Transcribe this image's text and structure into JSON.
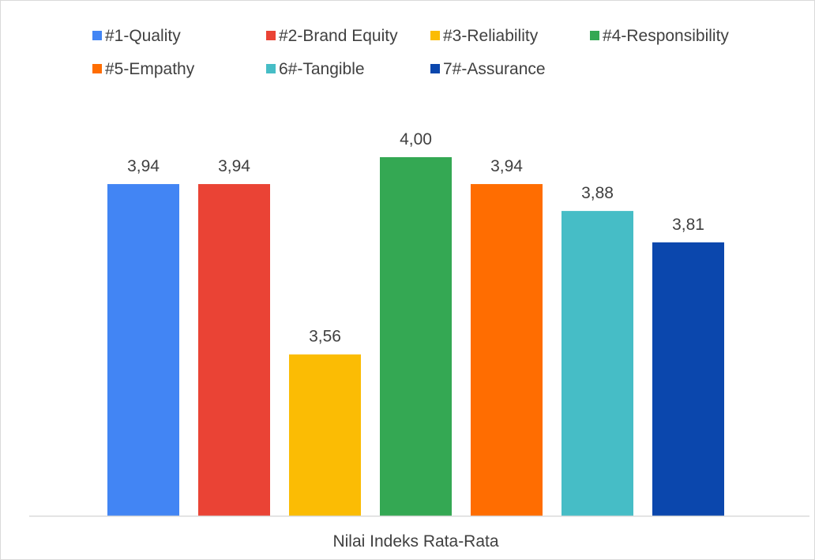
{
  "chart_data": {
    "type": "bar",
    "categories": [
      "Nilai Indeks Rata-Rata"
    ],
    "series": [
      {
        "name": "#1-Quality",
        "values": [
          3.94
        ],
        "label": "3,94",
        "color": "#4285f4"
      },
      {
        "name": "#2-Brand Equity",
        "values": [
          3.94
        ],
        "label": "3,94",
        "color": "#ea4335"
      },
      {
        "name": "#3-Reliability",
        "values": [
          3.56
        ],
        "label": "3,56",
        "color": "#fbbc04"
      },
      {
        "name": "#4-Responsibility",
        "values": [
          4.0
        ],
        "label": "4,00",
        "color": "#34a853"
      },
      {
        "name": "#5-Empathy",
        "values": [
          3.94
        ],
        "label": "3,94",
        "color": "#ff6d01"
      },
      {
        "name": "6#-Tangible",
        "values": [
          3.88
        ],
        "label": "3,88",
        "color": "#46bdc6"
      },
      {
        "name": "7#-Assurance",
        "values": [
          3.81
        ],
        "label": "3,81",
        "color": "#0b47ad"
      }
    ],
    "title": "",
    "xlabel": "",
    "ylabel": "",
    "ylim": [
      3.2,
      4.1
    ],
    "grid": false,
    "legend_position": "top"
  },
  "colors": {
    "axis_line": "#d9d9d9",
    "text": "#404040"
  }
}
